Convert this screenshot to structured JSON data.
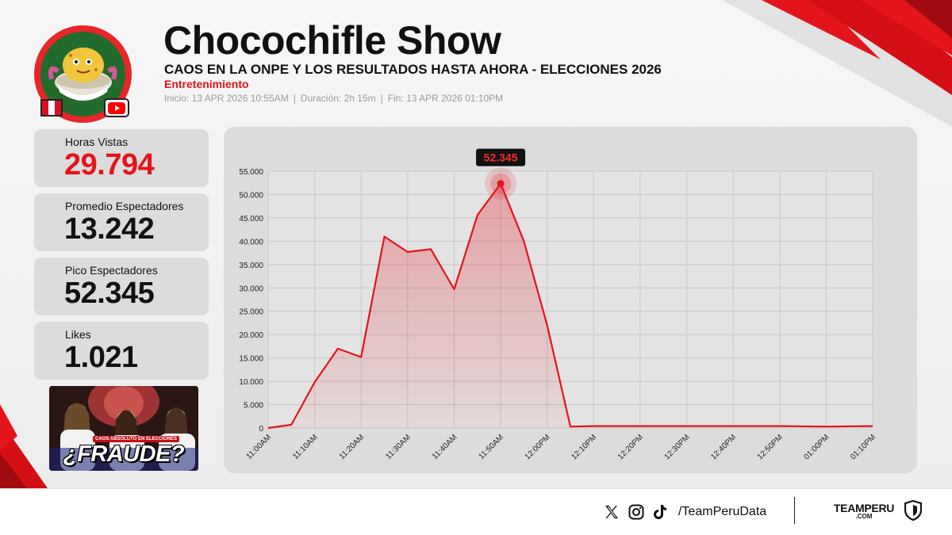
{
  "header": {
    "title": "Chocochifle Show",
    "subtitle": "CAOS EN LA ONPE Y LOS RESULTADOS HASTA AHORA - ELECCIONES 2026",
    "category": "Entretenimiento",
    "meta": {
      "start": "Inicio: 13 APR 2026 10:55AM",
      "duration": "Duración: 2h 15m",
      "end": "Fin: 13 APR 2026 01:10PM",
      "separator": "|"
    }
  },
  "stats": [
    {
      "label": "Horas Vistas",
      "value": "29.794",
      "accent": true
    },
    {
      "label": "Promedio Espectadores",
      "value": "13.242",
      "accent": false
    },
    {
      "label": "Pico Espectadores",
      "value": "52.345",
      "accent": false
    },
    {
      "label": "Likes",
      "value": "1.021",
      "accent": false
    }
  ],
  "thumbnail": {
    "tag": "CAOS ABSOLUTO EN ELECCIONES",
    "word": "¿FRAUDE?"
  },
  "chart_data": {
    "type": "area",
    "title": "",
    "xlabel": "",
    "ylabel": "",
    "x_unit": "minutes after 11:00AM",
    "xlim": [
      0,
      130
    ],
    "ylim": [
      0,
      55000
    ],
    "y_ticks": [
      0,
      5000,
      10000,
      15000,
      20000,
      25000,
      30000,
      35000,
      40000,
      45000,
      50000,
      55000
    ],
    "y_tick_labels": [
      "0",
      "5.000",
      "10.000",
      "15.000",
      "20.000",
      "25.000",
      "30.000",
      "35.000",
      "40.000",
      "45.000",
      "50.000",
      "55.000"
    ],
    "x_ticks": [
      0,
      10,
      20,
      30,
      40,
      50,
      60,
      70,
      80,
      90,
      100,
      110,
      120,
      130
    ],
    "x_tick_labels": [
      "11:00AM",
      "11:10AM",
      "11:20AM",
      "11:30AM",
      "11:40AM",
      "11:50AM",
      "12:00PM",
      "12:10PM",
      "12:20PM",
      "12:30PM",
      "12:40PM",
      "12:50PM",
      "01:00PM",
      "01:10PM"
    ],
    "grid": true,
    "series": [
      {
        "color": "#e3141b",
        "x": [
          0,
          5,
          10,
          15,
          20,
          25,
          30,
          35,
          40,
          45,
          50,
          55,
          60,
          65,
          70,
          80,
          90,
          100,
          110,
          120,
          130
        ],
        "values": [
          0,
          700,
          9800,
          17000,
          15200,
          41000,
          37700,
          38300,
          29700,
          45600,
          52345,
          40000,
          22000,
          300,
          400,
          400,
          400,
          400,
          400,
          300,
          400
        ]
      }
    ],
    "peak": {
      "x": 50,
      "value": 52345,
      "label": "52.345"
    }
  },
  "footer": {
    "icons": [
      "x-logo-icon",
      "instagram-icon",
      "tiktok-icon"
    ],
    "handle": "/TeamPeruData",
    "brand_name": "TEAMPERU",
    "brand_domain": ".COM"
  },
  "colors": {
    "accent": "#e3141b",
    "panel": "#dcdcdc",
    "avatar_bg": "#236b2c"
  }
}
